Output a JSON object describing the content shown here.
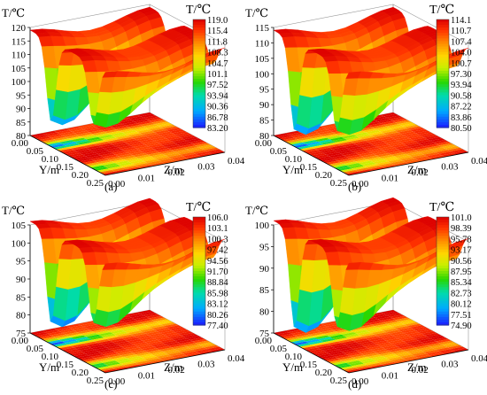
{
  "figure": {
    "panels": [
      {
        "label": "(a)",
        "z_axis_title": "T/℃",
        "z_ticks": [
          "120",
          "115",
          "110",
          "105",
          "100",
          "95",
          "90",
          "85",
          "80"
        ],
        "y_axis_title": "Y/m",
        "y_ticks": [
          "0.00",
          "0.05",
          "0.10",
          "0.15",
          "0.20",
          "0.25"
        ],
        "z2_axis_title": "Z/m",
        "z2_ticks": [
          "0.00",
          "0.01",
          "0.02",
          "0.03",
          "0.04"
        ],
        "colorbar_title": "T/℃",
        "colorbar_labels": [
          "119.0",
          "115.4",
          "111.8",
          "108.3",
          "104.7",
          "101.1",
          "97.52",
          "93.94",
          "90.36",
          "86.78",
          "83.20"
        ]
      },
      {
        "label": "(b)",
        "z_axis_title": "T/℃",
        "z_ticks": [
          "115",
          "110",
          "105",
          "100",
          "95",
          "90",
          "85",
          "80"
        ],
        "y_axis_title": "Y/m",
        "y_ticks": [
          "0.00",
          "0.05",
          "0.10",
          "0.15",
          "0.20",
          "0.25"
        ],
        "z2_axis_title": "Z/m",
        "z2_ticks": [
          "0.00",
          "0.01",
          "0.02",
          "0.03",
          "0.04"
        ],
        "colorbar_title": "T/℃",
        "colorbar_labels": [
          "114.1",
          "110.7",
          "107.4",
          "104.0",
          "100.7",
          "97.30",
          "93.94",
          "90.58",
          "87.22",
          "83.86",
          "80.50"
        ]
      },
      {
        "label": "(c)",
        "z_axis_title": "T/℃",
        "z_ticks": [
          "105",
          "100",
          "95",
          "90",
          "85",
          "80",
          "75"
        ],
        "y_axis_title": "Y/m",
        "y_ticks": [
          "0.00",
          "0.05",
          "0.10",
          "0.15",
          "0.20",
          "0.25"
        ],
        "z2_axis_title": "Z/m",
        "z2_ticks": [
          "0.00",
          "0.01",
          "0.02",
          "0.03",
          "0.04"
        ],
        "colorbar_title": "T/℃",
        "colorbar_labels": [
          "106.0",
          "103.1",
          "100.3",
          "97.42",
          "94.56",
          "91.70",
          "88.84",
          "85.98",
          "83.12",
          "80.26",
          "77.40"
        ]
      },
      {
        "label": "(d)",
        "z_axis_title": "T/℃",
        "z_ticks": [
          "100",
          "95",
          "90",
          "85",
          "80",
          "75"
        ],
        "y_axis_title": "Y/m",
        "y_ticks": [
          "0.00",
          "0.05",
          "0.10",
          "0.15",
          "0.20",
          "0.25"
        ],
        "z2_axis_title": "Z/m",
        "z2_ticks": [
          "0.00",
          "0.01",
          "0.02",
          "0.03",
          "0.04"
        ],
        "colorbar_title": "T/℃",
        "colorbar_labels": [
          "101.0",
          "98.39",
          "95.78",
          "93.17",
          "90.56",
          "87.95",
          "85.34",
          "82.73",
          "80.12",
          "77.51",
          "74.90"
        ]
      }
    ]
  },
  "chart_data": [
    {
      "type": "heatmap",
      "surface": "3d-surface-with-floor-contour",
      "zlim": [
        80,
        120
      ],
      "ylim": [
        0,
        0.25
      ],
      "z2lim": [
        0,
        0.04
      ],
      "t_range": [
        83.2,
        119.0
      ],
      "min_temperature_approx": 87,
      "troughs_y": [
        0.07,
        0.21
      ],
      "colorscale": [
        "#1a1aff",
        "#00b4ff",
        "#00e0a0",
        "#40e000",
        "#d8f000",
        "#ffd000",
        "#ff8000",
        "#ff2000",
        "#e00000"
      ]
    },
    {
      "type": "heatmap",
      "surface": "3d-surface-with-floor-contour",
      "zlim": [
        80,
        115
      ],
      "ylim": [
        0,
        0.25
      ],
      "z2lim": [
        0,
        0.04
      ],
      "t_range": [
        80.5,
        114.1
      ],
      "min_temperature_approx": 83,
      "troughs_y": [
        0.07,
        0.21
      ],
      "colorscale": [
        "#1a1aff",
        "#00b4ff",
        "#00e0a0",
        "#40e000",
        "#d8f000",
        "#ffd000",
        "#ff8000",
        "#ff2000",
        "#e00000"
      ]
    },
    {
      "type": "heatmap",
      "surface": "3d-surface-with-floor-contour",
      "zlim": [
        75,
        105
      ],
      "ylim": [
        0,
        0.25
      ],
      "z2lim": [
        0,
        0.04
      ],
      "t_range": [
        77.4,
        106.0
      ],
      "min_temperature_approx": 79,
      "troughs_y": [
        0.07,
        0.21
      ],
      "colorscale": [
        "#1a1aff",
        "#00b4ff",
        "#00e0a0",
        "#40e000",
        "#d8f000",
        "#ffd000",
        "#ff8000",
        "#ff2000",
        "#e00000"
      ]
    },
    {
      "type": "heatmap",
      "surface": "3d-surface-with-floor-contour",
      "zlim": [
        75,
        100
      ],
      "ylim": [
        0,
        0.25
      ],
      "z2lim": [
        0,
        0.04
      ],
      "t_range": [
        74.9,
        101.0
      ],
      "min_temperature_approx": 77,
      "troughs_y": [
        0.07,
        0.21
      ],
      "colorscale": [
        "#1a1aff",
        "#00b4ff",
        "#00e0a0",
        "#40e000",
        "#d8f000",
        "#ffd000",
        "#ff8000",
        "#ff2000",
        "#e00000"
      ]
    }
  ]
}
